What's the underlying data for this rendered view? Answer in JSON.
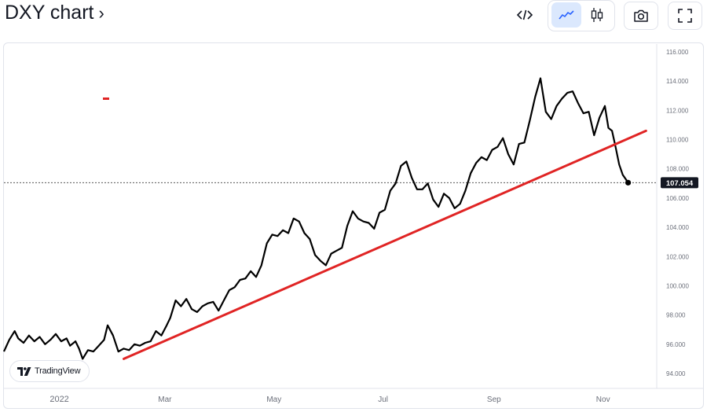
{
  "header": {
    "title": "DXY chart",
    "title_chevron": "›",
    "buttons": {
      "embed": {
        "icon": "code-icon",
        "glyph": "</>"
      },
      "line_chart": {
        "icon": "line-chart-icon",
        "active": true
      },
      "candles": {
        "icon": "candlestick-icon"
      },
      "snapshot": {
        "icon": "camera-icon"
      },
      "fullscreen": {
        "icon": "fullscreen-icon"
      }
    }
  },
  "branding": {
    "name": "TradingView"
  },
  "colors": {
    "price_line": "#000000",
    "trend_line": "#e02424",
    "price_label_bg": "#131722",
    "axis_text": "#6b6f7a",
    "accent_active": "#dbe8fd"
  },
  "chart_data": {
    "type": "line",
    "title": "",
    "xlabel": "",
    "ylabel": "",
    "x_tick_labels": [
      "2022",
      "Mar",
      "May",
      "Jul",
      "Sep",
      "Nov"
    ],
    "y_tick_labels": [
      "116.000",
      "114.000",
      "112.000",
      "110.000",
      "108.000",
      "106.000",
      "104.000",
      "102.000",
      "100.000",
      "98.000",
      "96.000",
      "94.000"
    ],
    "ylim": [
      93.5,
      116.6
    ],
    "y_ticks": [
      116,
      114,
      112,
      110,
      108,
      106,
      104,
      102,
      100,
      98,
      96,
      94
    ],
    "last_price": 107.054,
    "last_price_label": "107.054",
    "x_start": "2021-12-01",
    "x_end": "2022-12-01",
    "grid": false,
    "series": [
      {
        "values": [
          [
            "2021-12-01",
            95.5
          ],
          [
            "2021-12-04",
            96.3
          ],
          [
            "2021-12-07",
            96.9
          ],
          [
            "2021-12-09",
            96.4
          ],
          [
            "2021-12-12",
            96.1
          ],
          [
            "2021-12-15",
            96.6
          ],
          [
            "2021-12-18",
            96.2
          ],
          [
            "2021-12-21",
            96.5
          ],
          [
            "2021-12-24",
            96.0
          ],
          [
            "2021-12-27",
            96.3
          ],
          [
            "2021-12-30",
            96.7
          ],
          [
            "2022-01-02",
            96.2
          ],
          [
            "2022-01-05",
            96.4
          ],
          [
            "2022-01-07",
            95.9
          ],
          [
            "2022-01-10",
            96.2
          ],
          [
            "2022-01-12",
            95.7
          ],
          [
            "2022-01-14",
            95.0
          ],
          [
            "2022-01-17",
            95.6
          ],
          [
            "2022-01-20",
            95.5
          ],
          [
            "2022-01-23",
            95.9
          ],
          [
            "2022-01-26",
            96.3
          ],
          [
            "2022-01-28",
            97.3
          ],
          [
            "2022-01-31",
            96.6
          ],
          [
            "2022-02-03",
            95.5
          ],
          [
            "2022-02-06",
            95.7
          ],
          [
            "2022-02-09",
            95.6
          ],
          [
            "2022-02-12",
            96.0
          ],
          [
            "2022-02-15",
            95.9
          ],
          [
            "2022-02-18",
            96.1
          ],
          [
            "2022-02-21",
            96.2
          ],
          [
            "2022-02-24",
            96.9
          ],
          [
            "2022-02-27",
            96.6
          ],
          [
            "2022-03-02",
            97.3
          ],
          [
            "2022-03-04",
            97.8
          ],
          [
            "2022-03-07",
            99.0
          ],
          [
            "2022-03-10",
            98.6
          ],
          [
            "2022-03-13",
            99.1
          ],
          [
            "2022-03-16",
            98.4
          ],
          [
            "2022-03-19",
            98.2
          ],
          [
            "2022-03-22",
            98.6
          ],
          [
            "2022-03-25",
            98.8
          ],
          [
            "2022-03-28",
            98.9
          ],
          [
            "2022-03-31",
            98.3
          ],
          [
            "2022-04-03",
            99.0
          ],
          [
            "2022-04-06",
            99.7
          ],
          [
            "2022-04-09",
            99.9
          ],
          [
            "2022-04-12",
            100.4
          ],
          [
            "2022-04-15",
            100.5
          ],
          [
            "2022-04-18",
            101.0
          ],
          [
            "2022-04-21",
            100.6
          ],
          [
            "2022-04-24",
            101.4
          ],
          [
            "2022-04-27",
            102.9
          ],
          [
            "2022-04-30",
            103.5
          ],
          [
            "2022-05-03",
            103.4
          ],
          [
            "2022-05-06",
            103.8
          ],
          [
            "2022-05-09",
            103.6
          ],
          [
            "2022-05-12",
            104.6
          ],
          [
            "2022-05-15",
            104.4
          ],
          [
            "2022-05-18",
            103.6
          ],
          [
            "2022-05-21",
            103.2
          ],
          [
            "2022-05-24",
            102.1
          ],
          [
            "2022-05-27",
            101.7
          ],
          [
            "2022-05-30",
            101.4
          ],
          [
            "2022-06-02",
            102.2
          ],
          [
            "2022-06-05",
            102.4
          ],
          [
            "2022-06-08",
            102.6
          ],
          [
            "2022-06-11",
            104.1
          ],
          [
            "2022-06-14",
            105.1
          ],
          [
            "2022-06-17",
            104.6
          ],
          [
            "2022-06-20",
            104.4
          ],
          [
            "2022-06-23",
            104.3
          ],
          [
            "2022-06-26",
            103.9
          ],
          [
            "2022-06-29",
            105.0
          ],
          [
            "2022-07-02",
            105.2
          ],
          [
            "2022-07-05",
            106.5
          ],
          [
            "2022-07-08",
            107.0
          ],
          [
            "2022-07-11",
            108.2
          ],
          [
            "2022-07-14",
            108.5
          ],
          [
            "2022-07-17",
            107.4
          ],
          [
            "2022-07-20",
            106.6
          ],
          [
            "2022-07-23",
            106.6
          ],
          [
            "2022-07-26",
            107.0
          ],
          [
            "2022-07-29",
            105.9
          ],
          [
            "2022-08-01",
            105.4
          ],
          [
            "2022-08-04",
            106.3
          ],
          [
            "2022-08-07",
            106.0
          ],
          [
            "2022-08-10",
            105.3
          ],
          [
            "2022-08-13",
            105.6
          ],
          [
            "2022-08-16",
            106.5
          ],
          [
            "2022-08-19",
            107.7
          ],
          [
            "2022-08-22",
            108.4
          ],
          [
            "2022-08-25",
            108.8
          ],
          [
            "2022-08-28",
            108.6
          ],
          [
            "2022-08-31",
            109.3
          ],
          [
            "2022-09-03",
            109.5
          ],
          [
            "2022-09-06",
            110.1
          ],
          [
            "2022-09-09",
            109.0
          ],
          [
            "2022-09-12",
            108.3
          ],
          [
            "2022-09-15",
            109.7
          ],
          [
            "2022-09-18",
            109.8
          ],
          [
            "2022-09-21",
            111.3
          ],
          [
            "2022-09-24",
            112.9
          ],
          [
            "2022-09-27",
            114.2
          ],
          [
            "2022-09-30",
            111.9
          ],
          [
            "2022-10-03",
            111.4
          ],
          [
            "2022-10-06",
            112.3
          ],
          [
            "2022-10-09",
            112.8
          ],
          [
            "2022-10-12",
            113.2
          ],
          [
            "2022-10-15",
            113.3
          ],
          [
            "2022-10-18",
            112.5
          ],
          [
            "2022-10-21",
            111.8
          ],
          [
            "2022-10-24",
            111.9
          ],
          [
            "2022-10-27",
            110.3
          ],
          [
            "2022-10-30",
            111.5
          ],
          [
            "2022-11-02",
            112.3
          ],
          [
            "2022-11-04",
            110.8
          ],
          [
            "2022-11-06",
            110.6
          ],
          [
            "2022-11-08",
            109.5
          ],
          [
            "2022-11-10",
            108.3
          ],
          [
            "2022-11-12",
            107.6
          ],
          [
            "2022-11-15",
            107.054
          ]
        ]
      }
    ],
    "annotations": [
      {
        "type": "trend-line",
        "from": [
          "2022-02-06",
          95.0
        ],
        "to": [
          "2022-11-25",
          110.6
        ]
      }
    ]
  }
}
